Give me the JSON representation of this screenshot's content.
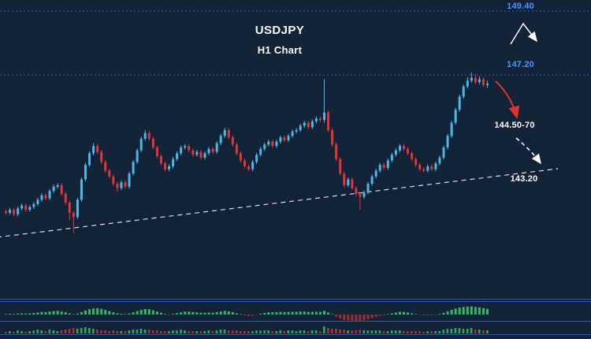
{
  "colors": {
    "background": "#122338",
    "bullish": "#4db7e5",
    "bearish": "#e23535",
    "level_line": "#2e5fb8",
    "separator": "#2d56b5",
    "trendline": "#d8e0ea",
    "osc_pos": "#2eb864",
    "osc_neg": "#a03030",
    "vol_up": "#2eb864",
    "vol_down": "#c03434",
    "label_blue": "#3d9aff",
    "label_white": "#ffffff",
    "arrow_white": "#ffffff",
    "arrow_red": "#e53030"
  },
  "chart_data": {
    "type": "candlestick",
    "title": "USDJPY",
    "subtitle": "H1 Chart",
    "legend_position": "none",
    "grid": false,
    "levels": [
      {
        "label": "149.40",
        "price": 149.4,
        "style": "dotted"
      },
      {
        "label": "147.20",
        "price": 147.2,
        "style": "dotted"
      }
    ],
    "annotations": [
      {
        "label": "144.50-70",
        "color": "#ffffff",
        "meaning": "downside target zone"
      },
      {
        "label": "143.20",
        "color": "#ffffff",
        "meaning": "lower target"
      }
    ],
    "trendline": {
      "style": "dashed",
      "direction": "ascending-support"
    },
    "candles": [
      [
        142.5,
        142.57,
        142.38,
        142.45
      ],
      [
        142.45,
        142.62,
        142.38,
        142.55
      ],
      [
        142.55,
        142.62,
        142.33,
        142.4
      ],
      [
        142.4,
        142.67,
        142.33,
        142.6
      ],
      [
        142.6,
        142.77,
        142.53,
        142.7
      ],
      [
        142.7,
        142.77,
        142.48,
        142.55
      ],
      [
        142.55,
        142.72,
        142.48,
        142.65
      ],
      [
        142.65,
        142.82,
        142.58,
        142.75
      ],
      [
        142.75,
        142.97,
        142.68,
        142.9
      ],
      [
        142.9,
        143.12,
        142.83,
        143.05
      ],
      [
        143.05,
        143.12,
        142.88,
        142.95
      ],
      [
        142.95,
        143.27,
        142.88,
        143.2
      ],
      [
        143.2,
        143.42,
        143.13,
        143.35
      ],
      [
        143.35,
        143.47,
        143.28,
        143.4
      ],
      [
        143.4,
        143.47,
        143.03,
        143.1
      ],
      [
        143.1,
        143.17,
        142.73,
        142.8
      ],
      [
        142.8,
        142.87,
        142.2,
        142.45
      ],
      [
        142.45,
        142.52,
        141.75,
        142.3
      ],
      [
        142.3,
        142.97,
        142.23,
        142.9
      ],
      [
        142.9,
        143.67,
        142.83,
        143.6
      ],
      [
        143.6,
        144.17,
        143.53,
        144.1
      ],
      [
        144.1,
        144.57,
        144.03,
        144.5
      ],
      [
        144.5,
        144.85,
        144.43,
        144.75
      ],
      [
        144.75,
        144.82,
        144.48,
        144.55
      ],
      [
        144.55,
        144.62,
        144.13,
        144.2
      ],
      [
        144.2,
        144.27,
        143.83,
        143.9
      ],
      [
        143.9,
        143.97,
        143.63,
        143.7
      ],
      [
        143.7,
        143.77,
        143.38,
        143.45
      ],
      [
        143.45,
        143.52,
        143.18,
        143.3
      ],
      [
        143.3,
        143.57,
        143.23,
        143.5
      ],
      [
        143.5,
        143.57,
        143.28,
        143.35
      ],
      [
        143.35,
        143.87,
        143.28,
        143.8
      ],
      [
        143.8,
        144.27,
        143.73,
        144.2
      ],
      [
        144.2,
        144.67,
        144.13,
        144.6
      ],
      [
        144.6,
        145.07,
        144.53,
        145.0
      ],
      [
        145.0,
        145.3,
        144.93,
        145.2
      ],
      [
        145.2,
        145.27,
        144.93,
        145.0
      ],
      [
        145.0,
        145.07,
        144.63,
        144.7
      ],
      [
        144.7,
        144.77,
        144.33,
        144.4
      ],
      [
        144.4,
        144.47,
        144.08,
        144.15
      ],
      [
        144.15,
        144.22,
        143.88,
        143.95
      ],
      [
        143.95,
        144.12,
        143.88,
        144.05
      ],
      [
        144.05,
        144.37,
        143.98,
        144.3
      ],
      [
        144.3,
        144.57,
        144.23,
        144.5
      ],
      [
        144.5,
        144.77,
        144.43,
        144.7
      ],
      [
        144.7,
        144.82,
        144.63,
        144.75
      ],
      [
        144.75,
        144.82,
        144.53,
        144.6
      ],
      [
        144.6,
        144.67,
        144.38,
        144.45
      ],
      [
        144.45,
        144.62,
        144.38,
        144.55
      ],
      [
        144.55,
        144.62,
        144.28,
        144.35
      ],
      [
        144.35,
        144.57,
        144.28,
        144.5
      ],
      [
        144.5,
        144.72,
        144.43,
        144.65
      ],
      [
        144.65,
        144.72,
        144.48,
        144.55
      ],
      [
        144.55,
        144.92,
        144.48,
        144.85
      ],
      [
        144.85,
        145.17,
        144.78,
        145.1
      ],
      [
        145.1,
        145.38,
        145.03,
        145.3
      ],
      [
        145.3,
        145.37,
        144.98,
        145.05
      ],
      [
        145.05,
        145.12,
        144.73,
        144.8
      ],
      [
        144.8,
        144.87,
        144.43,
        144.5
      ],
      [
        144.5,
        144.57,
        144.18,
        144.25
      ],
      [
        144.25,
        144.32,
        143.98,
        144.05
      ],
      [
        144.05,
        144.12,
        143.88,
        143.95
      ],
      [
        143.95,
        144.27,
        143.88,
        144.2
      ],
      [
        144.2,
        144.52,
        144.13,
        144.45
      ],
      [
        144.45,
        144.72,
        144.38,
        144.65
      ],
      [
        144.65,
        144.87,
        144.58,
        144.8
      ],
      [
        144.8,
        144.97,
        144.73,
        144.9
      ],
      [
        144.9,
        144.97,
        144.68,
        144.75
      ],
      [
        144.75,
        144.97,
        144.68,
        144.9
      ],
      [
        144.9,
        145.12,
        144.83,
        145.05
      ],
      [
        145.05,
        145.12,
        144.88,
        144.95
      ],
      [
        144.95,
        145.17,
        144.88,
        145.1
      ],
      [
        145.1,
        145.32,
        145.03,
        145.25
      ],
      [
        145.25,
        145.37,
        145.18,
        145.3
      ],
      [
        145.3,
        145.52,
        145.23,
        145.45
      ],
      [
        145.45,
        145.62,
        145.38,
        145.55
      ],
      [
        145.55,
        145.62,
        145.33,
        145.4
      ],
      [
        145.4,
        145.67,
        145.33,
        145.6
      ],
      [
        145.6,
        145.77,
        145.53,
        145.7
      ],
      [
        145.7,
        145.77,
        145.58,
        145.65
      ],
      [
        145.65,
        147.05,
        145.55,
        145.9
      ],
      [
        145.9,
        145.97,
        145.23,
        145.3
      ],
      [
        145.3,
        145.37,
        144.73,
        144.8
      ],
      [
        144.8,
        144.87,
        144.23,
        144.3
      ],
      [
        144.3,
        144.37,
        143.73,
        143.8
      ],
      [
        143.8,
        143.87,
        143.33,
        143.4
      ],
      [
        143.4,
        143.67,
        143.33,
        143.6
      ],
      [
        143.6,
        143.67,
        143.23,
        143.3
      ],
      [
        143.3,
        143.37,
        143.03,
        143.1
      ],
      [
        143.1,
        143.17,
        142.55,
        143.0
      ],
      [
        143.0,
        143.22,
        142.93,
        143.15
      ],
      [
        143.15,
        143.52,
        143.08,
        143.45
      ],
      [
        143.45,
        143.77,
        143.38,
        143.7
      ],
      [
        143.7,
        143.97,
        143.63,
        143.9
      ],
      [
        143.9,
        144.17,
        143.83,
        144.1
      ],
      [
        144.1,
        144.17,
        143.93,
        144.0
      ],
      [
        144.0,
        144.32,
        143.93,
        144.25
      ],
      [
        144.25,
        144.52,
        144.18,
        144.45
      ],
      [
        144.45,
        144.67,
        144.38,
        144.6
      ],
      [
        144.6,
        144.82,
        144.53,
        144.75
      ],
      [
        144.75,
        144.82,
        144.58,
        144.65
      ],
      [
        144.65,
        144.72,
        144.43,
        144.5
      ],
      [
        144.5,
        144.57,
        144.23,
        144.3
      ],
      [
        144.3,
        144.37,
        144.03,
        144.1
      ],
      [
        144.1,
        144.17,
        143.88,
        143.95
      ],
      [
        143.95,
        144.02,
        143.83,
        143.9
      ],
      [
        143.9,
        144.12,
        143.83,
        144.05
      ],
      [
        144.05,
        144.12,
        143.88,
        143.95
      ],
      [
        143.95,
        144.22,
        143.88,
        144.15
      ],
      [
        144.15,
        144.42,
        144.08,
        144.35
      ],
      [
        144.35,
        144.77,
        144.28,
        144.7
      ],
      [
        144.7,
        145.17,
        144.63,
        145.1
      ],
      [
        145.1,
        145.62,
        145.03,
        145.55
      ],
      [
        145.55,
        146.07,
        145.48,
        146.0
      ],
      [
        146.0,
        146.52,
        145.93,
        146.45
      ],
      [
        146.45,
        146.87,
        146.38,
        146.8
      ],
      [
        146.8,
        147.12,
        146.73,
        147.0
      ],
      [
        147.0,
        147.28,
        146.93,
        147.1
      ],
      [
        147.1,
        147.22,
        146.88,
        146.95
      ],
      [
        146.95,
        147.15,
        146.88,
        147.05
      ],
      [
        147.05,
        147.12,
        146.78,
        146.85
      ],
      [
        146.85,
        147.0,
        146.75,
        146.9
      ]
    ],
    "oscillator": [
      0.5,
      0.8,
      0.6,
      1,
      1.2,
      1,
      1.2,
      1.5,
      2,
      2.6,
      2.4,
      3,
      3.4,
      3.6,
      3,
      2.2,
      1.2,
      0.4,
      1,
      2.4,
      4,
      5.2,
      6,
      6.2,
      5.6,
      4.6,
      3.4,
      2.2,
      1.2,
      0.8,
      0.2,
      1,
      2.2,
      3.4,
      4.6,
      5.4,
      5.2,
      4.2,
      3,
      1.8,
      0.6,
      -0.2,
      0.6,
      1.4,
      2.2,
      2.8,
      2.8,
      2.4,
      2.2,
      1.8,
      1.8,
      2,
      1.8,
      2.4,
      3,
      3.6,
      3.2,
      2.4,
      1.2,
      0.2,
      -0.8,
      -1.4,
      -1,
      -0.2,
      0.8,
      1.6,
      2.2,
      2.2,
      2.4,
      2.6,
      2.4,
      2.6,
      2.8,
      2.8,
      3,
      3,
      2.6,
      2.6,
      2.8,
      2.6,
      3.6,
      2,
      0.2,
      -2,
      -3.8,
      -5.2,
      -5.6,
      -6,
      -6.2,
      -6.4,
      -5.8,
      -4.6,
      -3.4,
      -2.2,
      -1.2,
      -0.8,
      0.2,
      1.2,
      2,
      2.6,
      2.6,
      2,
      1.2,
      0.4,
      -0.4,
      -0.8,
      -0.6,
      -0.8,
      -0.2,
      0.6,
      1.8,
      3.2,
      4.6,
      5.8,
      6.8,
      7.4,
      7.8,
      8,
      7.4,
      7,
      6.2,
      5.6
    ],
    "indicator2": [
      2,
      3,
      2,
      4,
      3,
      2,
      3,
      4,
      5,
      4,
      3,
      5,
      4,
      3,
      4,
      5,
      6,
      7,
      6,
      7,
      8,
      7,
      6,
      5,
      4,
      4,
      3,
      4,
      3,
      3,
      3,
      4,
      5,
      5,
      6,
      5,
      5,
      4,
      4,
      3,
      3,
      3,
      4,
      4,
      5,
      4,
      3,
      3,
      3,
      3,
      3,
      4,
      3,
      4,
      5,
      5,
      4,
      4,
      4,
      3,
      3,
      3,
      3,
      4,
      4,
      4,
      4,
      3,
      3,
      4,
      3,
      4,
      4,
      3,
      4,
      4,
      3,
      4,
      4,
      3,
      9,
      7,
      6,
      6,
      5,
      5,
      4,
      4,
      4,
      5,
      4,
      4,
      4,
      4,
      4,
      3,
      3,
      4,
      4,
      4,
      3,
      3,
      3,
      3,
      3,
      2,
      3,
      3,
      3,
      3,
      5,
      6,
      6,
      7,
      7,
      6,
      6,
      7,
      5,
      5,
      4,
      4
    ]
  }
}
